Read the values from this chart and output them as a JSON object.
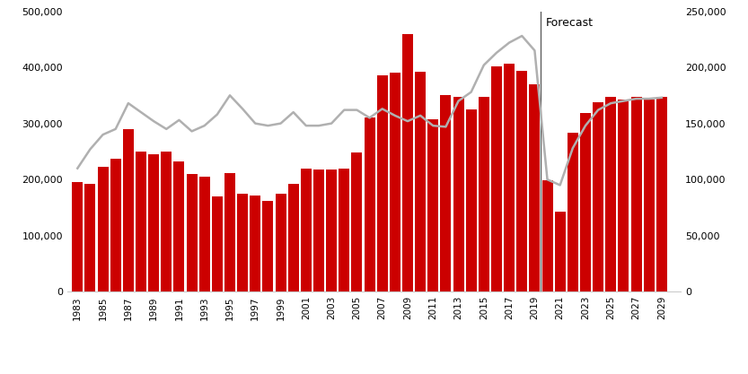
{
  "years_hist": [
    1983,
    1984,
    1985,
    1986,
    1987,
    1988,
    1989,
    1990,
    1991,
    1992,
    1993,
    1994,
    1995,
    1996,
    1997,
    1998,
    1999,
    2000,
    2001,
    2002,
    2003,
    2004,
    2005,
    2006,
    2007,
    2008,
    2009,
    2010,
    2011,
    2012,
    2013,
    2014,
    2015,
    2016,
    2017,
    2018,
    2019
  ],
  "pop_hist": [
    195000,
    192000,
    222000,
    237000,
    290000,
    250000,
    245000,
    250000,
    232000,
    210000,
    205000,
    170000,
    212000,
    175000,
    172000,
    162000,
    175000,
    193000,
    220000,
    218000,
    218000,
    220000,
    248000,
    310000,
    385000,
    390000,
    460000,
    392000,
    308000,
    350000,
    348000,
    325000,
    348000,
    402000,
    407000,
    393000,
    370000
  ],
  "dwelling_hist": [
    110000,
    127000,
    140000,
    145000,
    168000,
    160000,
    152000,
    145000,
    153000,
    143000,
    148000,
    158000,
    175000,
    163000,
    150000,
    148000,
    150000,
    160000,
    148000,
    148000,
    150000,
    162000,
    162000,
    155000,
    163000,
    157000,
    152000,
    157000,
    148000,
    147000,
    170000,
    178000,
    202000,
    213000,
    222000,
    228000,
    215000
  ],
  "years_fore": [
    2020,
    2021,
    2022,
    2023,
    2024,
    2025,
    2026,
    2027,
    2028,
    2029
  ],
  "pop_fore": [
    198000,
    143000,
    283000,
    318000,
    338000,
    348000,
    343000,
    348000,
    343000,
    348000
  ],
  "dwelling_fore": [
    100000,
    95000,
    128000,
    148000,
    162000,
    168000,
    170000,
    172000,
    172000,
    173000
  ],
  "bar_color": "#cc0000",
  "line_color": "#b0b0b0",
  "vline_x": 2019.5,
  "forecast_label": "Forecast",
  "ylim_left": [
    0,
    500000
  ],
  "ylim_right": [
    0,
    250000
  ],
  "yticks_left": [
    0,
    100000,
    200000,
    300000,
    400000,
    500000
  ],
  "yticks_right": [
    0,
    50000,
    100000,
    150000,
    200000,
    250000
  ],
  "xtick_years": [
    1983,
    1985,
    1987,
    1989,
    1991,
    1993,
    1995,
    1997,
    1999,
    2001,
    2003,
    2005,
    2007,
    2009,
    2011,
    2013,
    2015,
    2017,
    2019,
    2021,
    2023,
    2025,
    2027,
    2029
  ],
  "xlim": [
    1982.2,
    2030.5
  ],
  "bar_width": 0.85
}
